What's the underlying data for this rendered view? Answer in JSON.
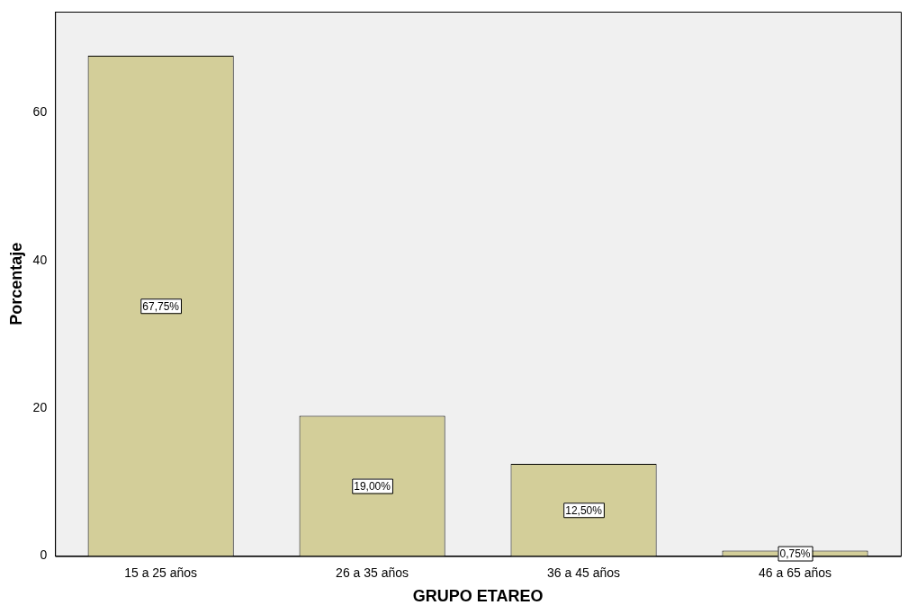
{
  "chart_data": {
    "type": "bar",
    "xlabel": "GRUPO ETAREO",
    "ylabel": "Porcentaje",
    "categories": [
      "15 a 25 años",
      "26 a 35 años",
      "36 a 45 años",
      "46 a 65 años"
    ],
    "values": [
      67.75,
      19.0,
      12.5,
      0.75
    ],
    "value_labels": [
      "67,75%",
      "19,00%",
      "12,50%",
      "0,75%"
    ],
    "color": "#d3ce99",
    "ylim": [
      0,
      73.7
    ],
    "yticks": [
      0,
      20,
      40,
      60
    ],
    "grid": false,
    "legend": false
  }
}
